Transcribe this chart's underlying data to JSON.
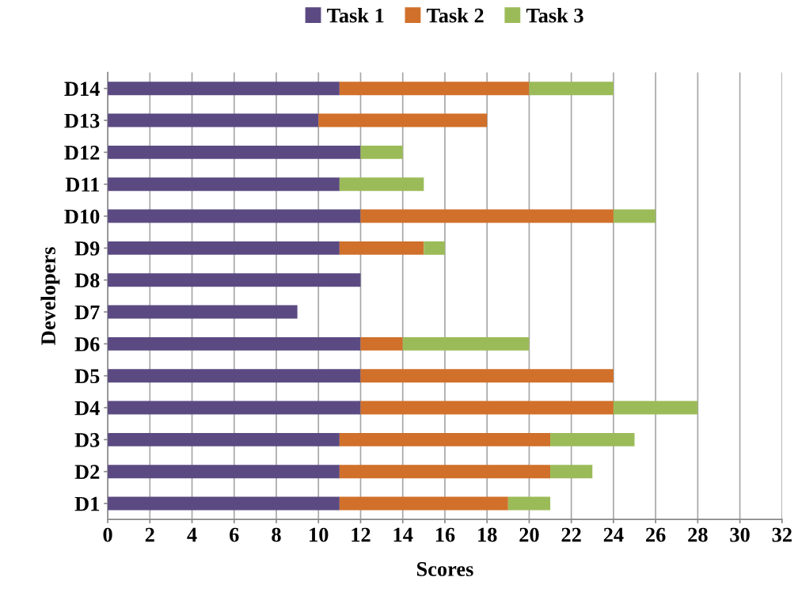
{
  "chart_data": {
    "type": "bar",
    "orientation": "horizontal",
    "stacked": true,
    "xlabel": "Scores",
    "ylabel": "Developers",
    "categories": [
      "D14",
      "D13",
      "D12",
      "D11",
      "D10",
      "D9",
      "D8",
      "D7",
      "D6",
      "D5",
      "D4",
      "D3",
      "D2",
      "D1"
    ],
    "series": [
      {
        "name": "Task 1",
        "color": "#5b4a82",
        "values": [
          11,
          10,
          12,
          11,
          12,
          11,
          12,
          9,
          12,
          12,
          12,
          11,
          11,
          11
        ]
      },
      {
        "name": "Task 2",
        "color": "#d0702a",
        "values": [
          9,
          8,
          0,
          0,
          12,
          4,
          0,
          0,
          2,
          12,
          12,
          10,
          10,
          8
        ]
      },
      {
        "name": "Task 3",
        "color": "#9bbb59",
        "values": [
          4,
          0,
          2,
          4,
          2,
          1,
          0,
          0,
          6,
          0,
          4,
          4,
          2,
          2
        ]
      }
    ],
    "xlim": [
      0,
      32
    ],
    "xticks": [
      0,
      2,
      4,
      6,
      8,
      10,
      12,
      14,
      16,
      18,
      20,
      22,
      24,
      26,
      28,
      30,
      32
    ],
    "grid": "x",
    "legend": "top"
  }
}
